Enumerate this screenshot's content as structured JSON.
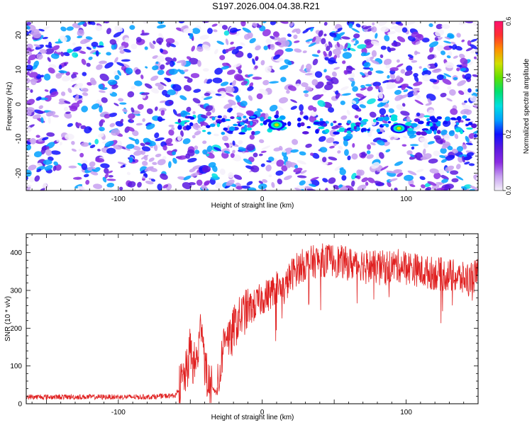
{
  "title": "S197.2026.004.04.38.R21",
  "colors": {
    "snr_line": "#e02020",
    "frame": "#000000",
    "colorbar_stops": [
      "#f4f0fa",
      "#c7a0f0",
      "#8a2be2",
      "#5a18e0",
      "#1010ff",
      "#00a0ff",
      "#00e0e0",
      "#00e070",
      "#60e000",
      "#d0e000",
      "#ff9000",
      "#ff3030",
      "#ff1070"
    ]
  },
  "chart_data": [
    {
      "type": "heatmap",
      "title": "",
      "xlabel": "Height of straight line (km)",
      "ylabel": "Frequency (Hz)",
      "xlim": [
        -164,
        150
      ],
      "ylim": [
        -25,
        24
      ],
      "xticks": [
        -100,
        0,
        100
      ],
      "yticks": [
        -20,
        -10,
        0,
        10,
        20
      ],
      "colorbar": {
        "label": "Normalized spectral amplitude",
        "range": [
          0.0,
          0.6
        ],
        "ticks": [
          "0.0",
          "0.2",
          "0.4",
          "0.6"
        ]
      },
      "features": [
        {
          "description": "horizontal band of strong amplitude",
          "frequency_hz": -6,
          "height_range_km": [
            -60,
            150
          ]
        },
        {
          "description": "peak",
          "height_km": 10,
          "frequency_hz": -6,
          "amplitude": 0.45
        },
        {
          "description": "peak",
          "height_km": 95,
          "frequency_hz": -7,
          "amplitude": 0.45
        }
      ]
    },
    {
      "type": "line",
      "title": "",
      "xlabel": "Height of straight line (km)",
      "ylabel": "SNR (10 * v/v)",
      "xlim": [
        -164,
        150
      ],
      "ylim": [
        0,
        450
      ],
      "xticks": [
        -100,
        0,
        100
      ],
      "yticks": [
        0,
        100,
        200,
        300,
        400
      ],
      "series": [
        {
          "name": "SNR",
          "x": [
            -164,
            -140,
            -120,
            -100,
            -80,
            -60,
            -52,
            -50,
            -48,
            -45,
            -42,
            -40,
            -38,
            -35,
            -32,
            -30,
            -28,
            -25,
            -22,
            -20,
            -15,
            -10,
            -5,
            0,
            5,
            10,
            15,
            20,
            25,
            30,
            40,
            50,
            60,
            70,
            80,
            90,
            100,
            110,
            120,
            130,
            140,
            150
          ],
          "values": [
            18,
            18,
            18,
            18,
            18,
            22,
            90,
            150,
            100,
            120,
            230,
            110,
            60,
            40,
            30,
            60,
            130,
            200,
            160,
            200,
            230,
            250,
            260,
            280,
            290,
            310,
            300,
            340,
            360,
            370,
            380,
            380,
            370,
            370,
            360,
            365,
            365,
            350,
            345,
            340,
            330,
            340
          ]
        }
      ]
    }
  ]
}
